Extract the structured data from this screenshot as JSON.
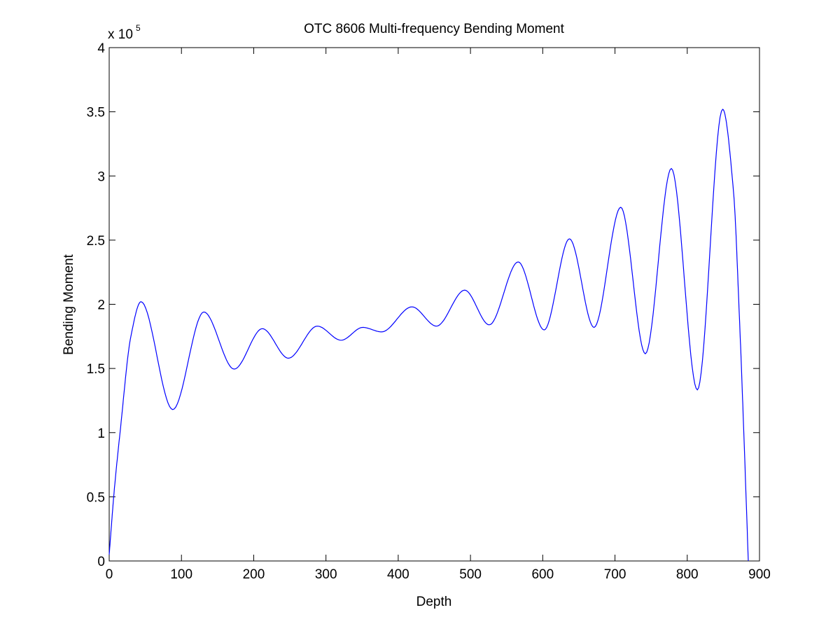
{
  "chart_data": {
    "type": "line",
    "title": "OTC 8606 Multi-frequency Bending Moment",
    "xlabel": "Depth",
    "ylabel": "Bending Moment",
    "y_exponent_label": "x 10",
    "y_exponent_power": "5",
    "xlim": [
      0,
      900
    ],
    "ylim": [
      0,
      4
    ],
    "y_scale_factor": 100000,
    "grid": false,
    "x_ticks": [
      "0",
      "100",
      "200",
      "300",
      "400",
      "500",
      "600",
      "700",
      "800",
      "900"
    ],
    "y_ticks": [
      "0",
      "0.5",
      "1",
      "1.5",
      "2",
      "2.5",
      "3",
      "3.5",
      "4"
    ],
    "x_tick_values": [
      0,
      100,
      200,
      300,
      400,
      500,
      600,
      700,
      800,
      900
    ],
    "y_tick_values": [
      0,
      0.5,
      1,
      1.5,
      2,
      2.5,
      3,
      3.5,
      4
    ],
    "series": [
      {
        "name": "Bending Moment",
        "color": "#0000ff",
        "x": [
          0,
          7,
          15,
          30,
          44,
          88,
          131,
          173,
          212,
          248,
          288,
          321,
          351,
          377,
          419,
          453,
          492,
          526,
          566,
          602,
          637,
          671,
          708,
          742,
          778,
          814,
          849,
          864,
          873,
          877,
          884.5
        ],
        "y": [
          0.05,
          0.55,
          1.0,
          1.75,
          2.02,
          1.18,
          1.94,
          1.495,
          1.81,
          1.58,
          1.83,
          1.72,
          1.82,
          1.785,
          1.98,
          1.83,
          2.11,
          1.84,
          2.33,
          1.8,
          2.51,
          1.82,
          2.756,
          1.615,
          3.058,
          1.333,
          3.52,
          2.88,
          1.79,
          1.2,
          0
        ]
      }
    ]
  }
}
